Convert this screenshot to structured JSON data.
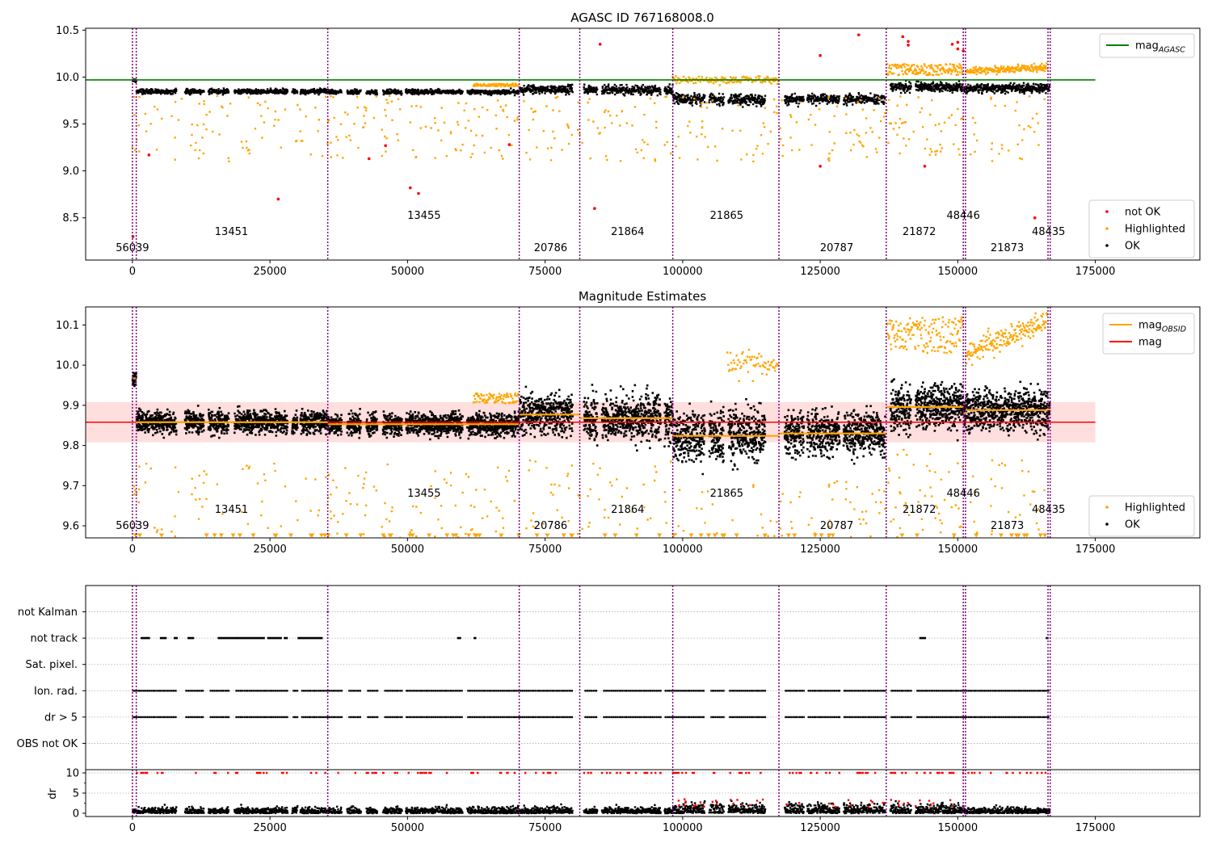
{
  "chart_data": [
    {
      "type": "scatter",
      "title": "AGASC ID 767168008.0",
      "xlim": [
        -8500,
        194000
      ],
      "ylim": [
        8.05,
        10.52
      ],
      "xticks": [
        0,
        25000,
        50000,
        75000,
        100000,
        125000,
        150000,
        175000
      ],
      "xtick_labels": [
        "0",
        "25000",
        "50000",
        "75000",
        "100000",
        "125000",
        "150000",
        "175000"
      ],
      "yticks": [
        8.5,
        9.0,
        9.5,
        10.0,
        10.5
      ],
      "ytick_labels": [
        "8.5",
        "9.0",
        "9.5",
        "10.0",
        "10.5"
      ],
      "legend_upper": {
        "position": "upper right",
        "entries": [
          {
            "label": "mag",
            "sub": "AGASC",
            "color": "#008000",
            "kind": "line"
          }
        ]
      },
      "legend_lower": {
        "position": "lower right",
        "entries": [
          {
            "label": "not OK",
            "color": "#ff0000",
            "kind": "dot"
          },
          {
            "label": "Highlighted",
            "color": "#ffa500",
            "kind": "dot"
          },
          {
            "label": "OK",
            "color": "#000000",
            "kind": "dot"
          }
        ]
      },
      "reference_line": {
        "name": "mag_AGASC",
        "y": 9.97,
        "x_range": [
          -8500,
          175000
        ],
        "color": "#008000"
      },
      "not_ok_points": [
        {
          "x": 100,
          "y": 8.3
        },
        {
          "x": 3000,
          "y": 9.17
        },
        {
          "x": 26500,
          "y": 8.7
        },
        {
          "x": 43000,
          "y": 9.13
        },
        {
          "x": 46000,
          "y": 9.27
        },
        {
          "x": 50500,
          "y": 8.82
        },
        {
          "x": 52000,
          "y": 8.76
        },
        {
          "x": 68500,
          "y": 9.28
        },
        {
          "x": 84000,
          "y": 8.6
        },
        {
          "x": 85000,
          "y": 10.35
        },
        {
          "x": 125000,
          "y": 9.05
        },
        {
          "x": 125000,
          "y": 10.23
        },
        {
          "x": 132000,
          "y": 10.45
        },
        {
          "x": 140000,
          "y": 10.43
        },
        {
          "x": 141000,
          "y": 10.38
        },
        {
          "x": 141000,
          "y": 10.34
        },
        {
          "x": 144000,
          "y": 9.05
        },
        {
          "x": 149000,
          "y": 10.35
        },
        {
          "x": 150000,
          "y": 10.37
        },
        {
          "x": 150000,
          "y": 10.3
        },
        {
          "x": 151000,
          "y": 10.28
        },
        {
          "x": 164000,
          "y": 8.5
        }
      ]
    },
    {
      "type": "scatter",
      "title": "Magnitude Estimates",
      "xlim": [
        -8500,
        194000
      ],
      "ylim": [
        9.57,
        10.145
      ],
      "xticks": [
        0,
        25000,
        50000,
        75000,
        100000,
        125000,
        150000,
        175000
      ],
      "xtick_labels": [
        "0",
        "25000",
        "50000",
        "75000",
        "100000",
        "125000",
        "150000",
        "175000"
      ],
      "yticks": [
        9.6,
        9.7,
        9.8,
        9.9,
        10.0,
        10.1
      ],
      "ytick_labels": [
        "9.6",
        "9.7",
        "9.8",
        "9.9",
        "10.0",
        "10.1"
      ],
      "legend_upper": {
        "position": "upper right",
        "entries": [
          {
            "label": "mag",
            "sub": "OBSID",
            "color": "#ffa500",
            "kind": "line"
          },
          {
            "label": "mag",
            "sub": "",
            "color": "#ff0000",
            "kind": "line"
          }
        ]
      },
      "legend_lower": {
        "position": "lower right",
        "entries": [
          {
            "label": "Highlighted",
            "color": "#ffa500",
            "kind": "dot"
          },
          {
            "label": "OK",
            "color": "#000000",
            "kind": "dot"
          }
        ]
      },
      "reference_line": {
        "name": "mag",
        "y": 9.858,
        "band": [
          9.808,
          9.908
        ],
        "x_range": [
          -8500,
          175000
        ],
        "color": "#ff0000"
      },
      "obsid_mag": [
        {
          "obsid": "56039",
          "x0": 0,
          "x1": 700,
          "mag": 9.967
        },
        {
          "obsid": "13451",
          "x0": 700,
          "x1": 35500,
          "mag": 9.858
        },
        {
          "obsid": "13455",
          "x0": 35500,
          "x1": 70300,
          "mag": 9.853
        },
        {
          "obsid": "20786",
          "x0": 70300,
          "x1": 81300,
          "mag": 9.877
        },
        {
          "obsid": "21864",
          "x0": 81300,
          "x1": 98200,
          "mag": 9.868
        },
        {
          "obsid": "21865",
          "x0": 98200,
          "x1": 117500,
          "mag": 9.824
        },
        {
          "obsid": "20787",
          "x0": 117500,
          "x1": 137000,
          "mag": 9.83
        },
        {
          "obsid": "21872",
          "x0": 137000,
          "x1": 151000,
          "mag": 9.896
        },
        {
          "obsid": "48446",
          "x0": 151000,
          "x1": 151400,
          "mag": 9.88
        },
        {
          "obsid": "21873",
          "x0": 151400,
          "x1": 166400,
          "mag": 9.888
        },
        {
          "obsid": "48435",
          "x0": 166400,
          "x1": 166800,
          "mag": 9.89
        }
      ]
    },
    {
      "type": "scatter",
      "title": "",
      "xlim": [
        -8500,
        194000
      ],
      "flag_rows": [
        "not Kalman",
        "not track",
        "Sat. pixel.",
        "Ion. rad.",
        "dr > 5",
        "OBS not OK"
      ],
      "flag_row_y": [
        6,
        5,
        4,
        3,
        2,
        1
      ],
      "not_track_clusters": [
        {
          "x0": 1500,
          "x1": 3000
        },
        {
          "x0": 5000,
          "x1": 6000
        },
        {
          "x0": 7500,
          "x1": 8000
        },
        {
          "x0": 10000,
          "x1": 11000
        },
        {
          "x0": 15500,
          "x1": 19000
        },
        {
          "x0": 19000,
          "x1": 24000
        },
        {
          "x0": 24500,
          "x1": 27000
        },
        {
          "x0": 27500,
          "x1": 28000
        },
        {
          "x0": 30000,
          "x1": 34500
        },
        {
          "x0": 59000,
          "x1": 59500
        },
        {
          "x0": 62000,
          "x1": 62300
        },
        {
          "x0": 143000,
          "x1": 144000
        },
        {
          "x0": 166000,
          "x1": 166300
        }
      ],
      "not_kalman_points": [
        {
          "x": 35500
        },
        {
          "x": 70300
        }
      ],
      "gaps": [
        [
          8000,
          9500
        ],
        [
          13000,
          13800
        ],
        [
          17500,
          18500
        ],
        [
          28200,
          29000
        ],
        [
          30000,
          30500
        ],
        [
          38000,
          39000
        ],
        [
          41500,
          42500
        ],
        [
          44500,
          45500
        ],
        [
          49000,
          49600
        ],
        [
          60000,
          60800
        ],
        [
          80000,
          82000
        ],
        [
          84500,
          85300
        ],
        [
          96000,
          96700
        ],
        [
          104000,
          104800
        ],
        [
          107500,
          108300
        ],
        [
          115000,
          118500
        ],
        [
          122000,
          122600
        ],
        [
          128500,
          129200
        ],
        [
          136800,
          137700
        ],
        [
          141500,
          142300
        ]
      ]
    },
    {
      "type": "scatter",
      "title": "",
      "ylabel": "dr",
      "xlim": [
        -8500,
        194000
      ],
      "ylim": [
        -0.8,
        10.8
      ],
      "xticks": [
        0,
        25000,
        50000,
        75000,
        100000,
        125000,
        150000,
        175000
      ],
      "xtick_labels": [
        "0",
        "25000",
        "50000",
        "75000",
        "100000",
        "125000",
        "150000",
        "175000"
      ],
      "yticks": [
        0,
        5,
        10
      ],
      "ytick_labels": [
        "0",
        "5",
        "10"
      ],
      "clipped_value": 10
    }
  ],
  "obs_boundaries": [
    0,
    700,
    35500,
    70300,
    81300,
    98200,
    117500,
    137000,
    151000,
    151400,
    166400,
    166800
  ],
  "obsid_labels": [
    {
      "text": "56039",
      "x": 0,
      "row": 0
    },
    {
      "text": "13451",
      "x": 18000,
      "row": 1
    },
    {
      "text": "13455",
      "x": 53000,
      "row": 2
    },
    {
      "text": "20786",
      "x": 76000,
      "row": 0
    },
    {
      "text": "21864",
      "x": 90000,
      "row": 1
    },
    {
      "text": "21865",
      "x": 108000,
      "row": 2
    },
    {
      "text": "20787",
      "x": 128000,
      "row": 0
    },
    {
      "text": "21872",
      "x": 143000,
      "row": 1
    },
    {
      "text": "48446",
      "x": 151000,
      "row": 2
    },
    {
      "text": "21873",
      "x": 159000,
      "row": 0
    },
    {
      "text": "48435",
      "x": 166500,
      "row": 1
    }
  ],
  "colors": {
    "ok": "#000000",
    "highlighted": "#ffa500",
    "not_ok": "#ff0000",
    "agasc": "#008000",
    "mag": "#ff0000",
    "boundary": "#800080",
    "grid": "#b0b0b0"
  }
}
